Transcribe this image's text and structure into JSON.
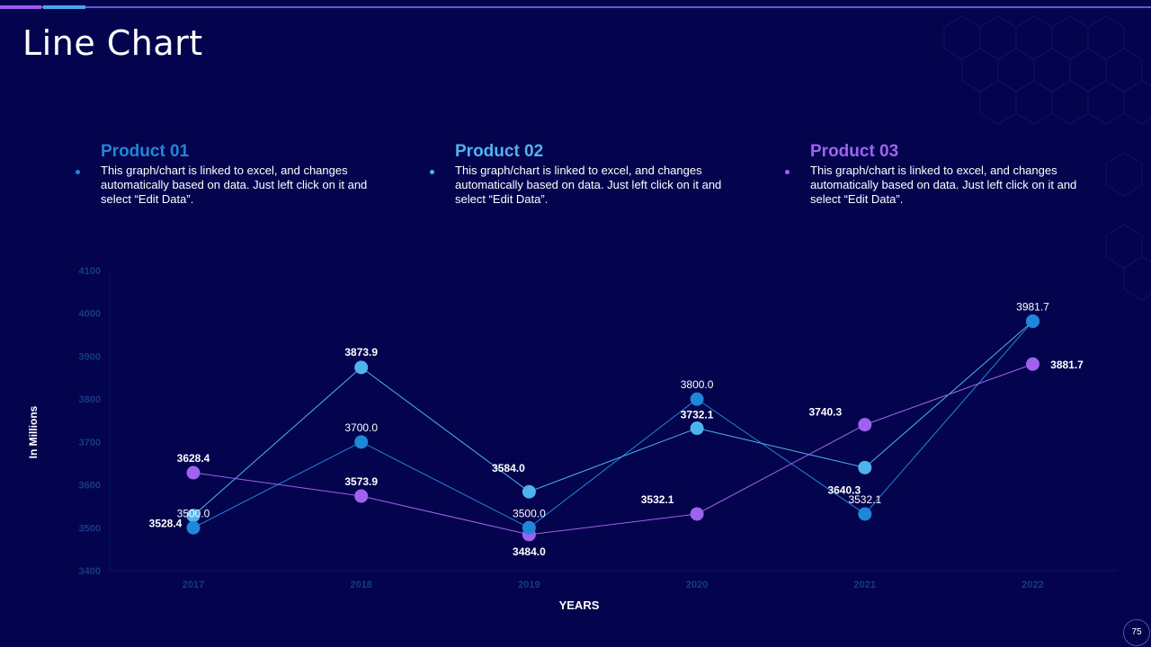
{
  "slide": {
    "title": "Line Chart",
    "page_number": "75"
  },
  "legend": [
    {
      "title": "Product 01",
      "color": "#1e87d8",
      "desc": "This graph/chart is linked to excel, and changes automatically based on data. Just left click on it and select “Edit Data”."
    },
    {
      "title": "Product 02",
      "color": "#4fb3ee",
      "desc": "This graph/chart is linked to excel, and changes automatically based on data. Just left click on it and select “Edit Data”."
    },
    {
      "title": "Product 03",
      "color": "#a062ee",
      "desc": "This graph/chart is linked to excel, and changes automatically based on data. Just left click on it and select “Edit Data”."
    }
  ],
  "chart_data": {
    "type": "line",
    "x": [
      "2017",
      "2018",
      "2019",
      "2020",
      "2021",
      "2022"
    ],
    "xlabel": "YEARS",
    "ylabel": "In Millions",
    "ylim": [
      3400,
      4100
    ],
    "yticks": [
      "3400",
      "3500",
      "3600",
      "3700",
      "3800",
      "3900",
      "4000",
      "4100"
    ],
    "grid": false,
    "series": [
      {
        "name": "Product 01",
        "color": "#1e87d8",
        "values": [
          3500.0,
          3700.0,
          3500.0,
          3800.0,
          3532.1,
          3981.7
        ],
        "labels": [
          "3500.0",
          "3700.0",
          "3500.0",
          "3800.0",
          "3532.1",
          "3981.7"
        ]
      },
      {
        "name": "Product 02",
        "color": "#4fb3ee",
        "values": [
          3528.4,
          3873.9,
          3584.0,
          3732.1,
          3640.3,
          3981.7
        ],
        "labels": [
          "3528.4",
          "3873.9",
          "3584.0",
          "3732.1",
          "3640.3",
          ""
        ]
      },
      {
        "name": "Product 03",
        "color": "#a062ee",
        "values": [
          3628.4,
          3573.9,
          3484.0,
          3532.1,
          3740.3,
          3881.7
        ],
        "labels": [
          "3628.4",
          "3573.9",
          "3484.0",
          "3532.1",
          "3740.3",
          "3881.7"
        ]
      }
    ]
  }
}
